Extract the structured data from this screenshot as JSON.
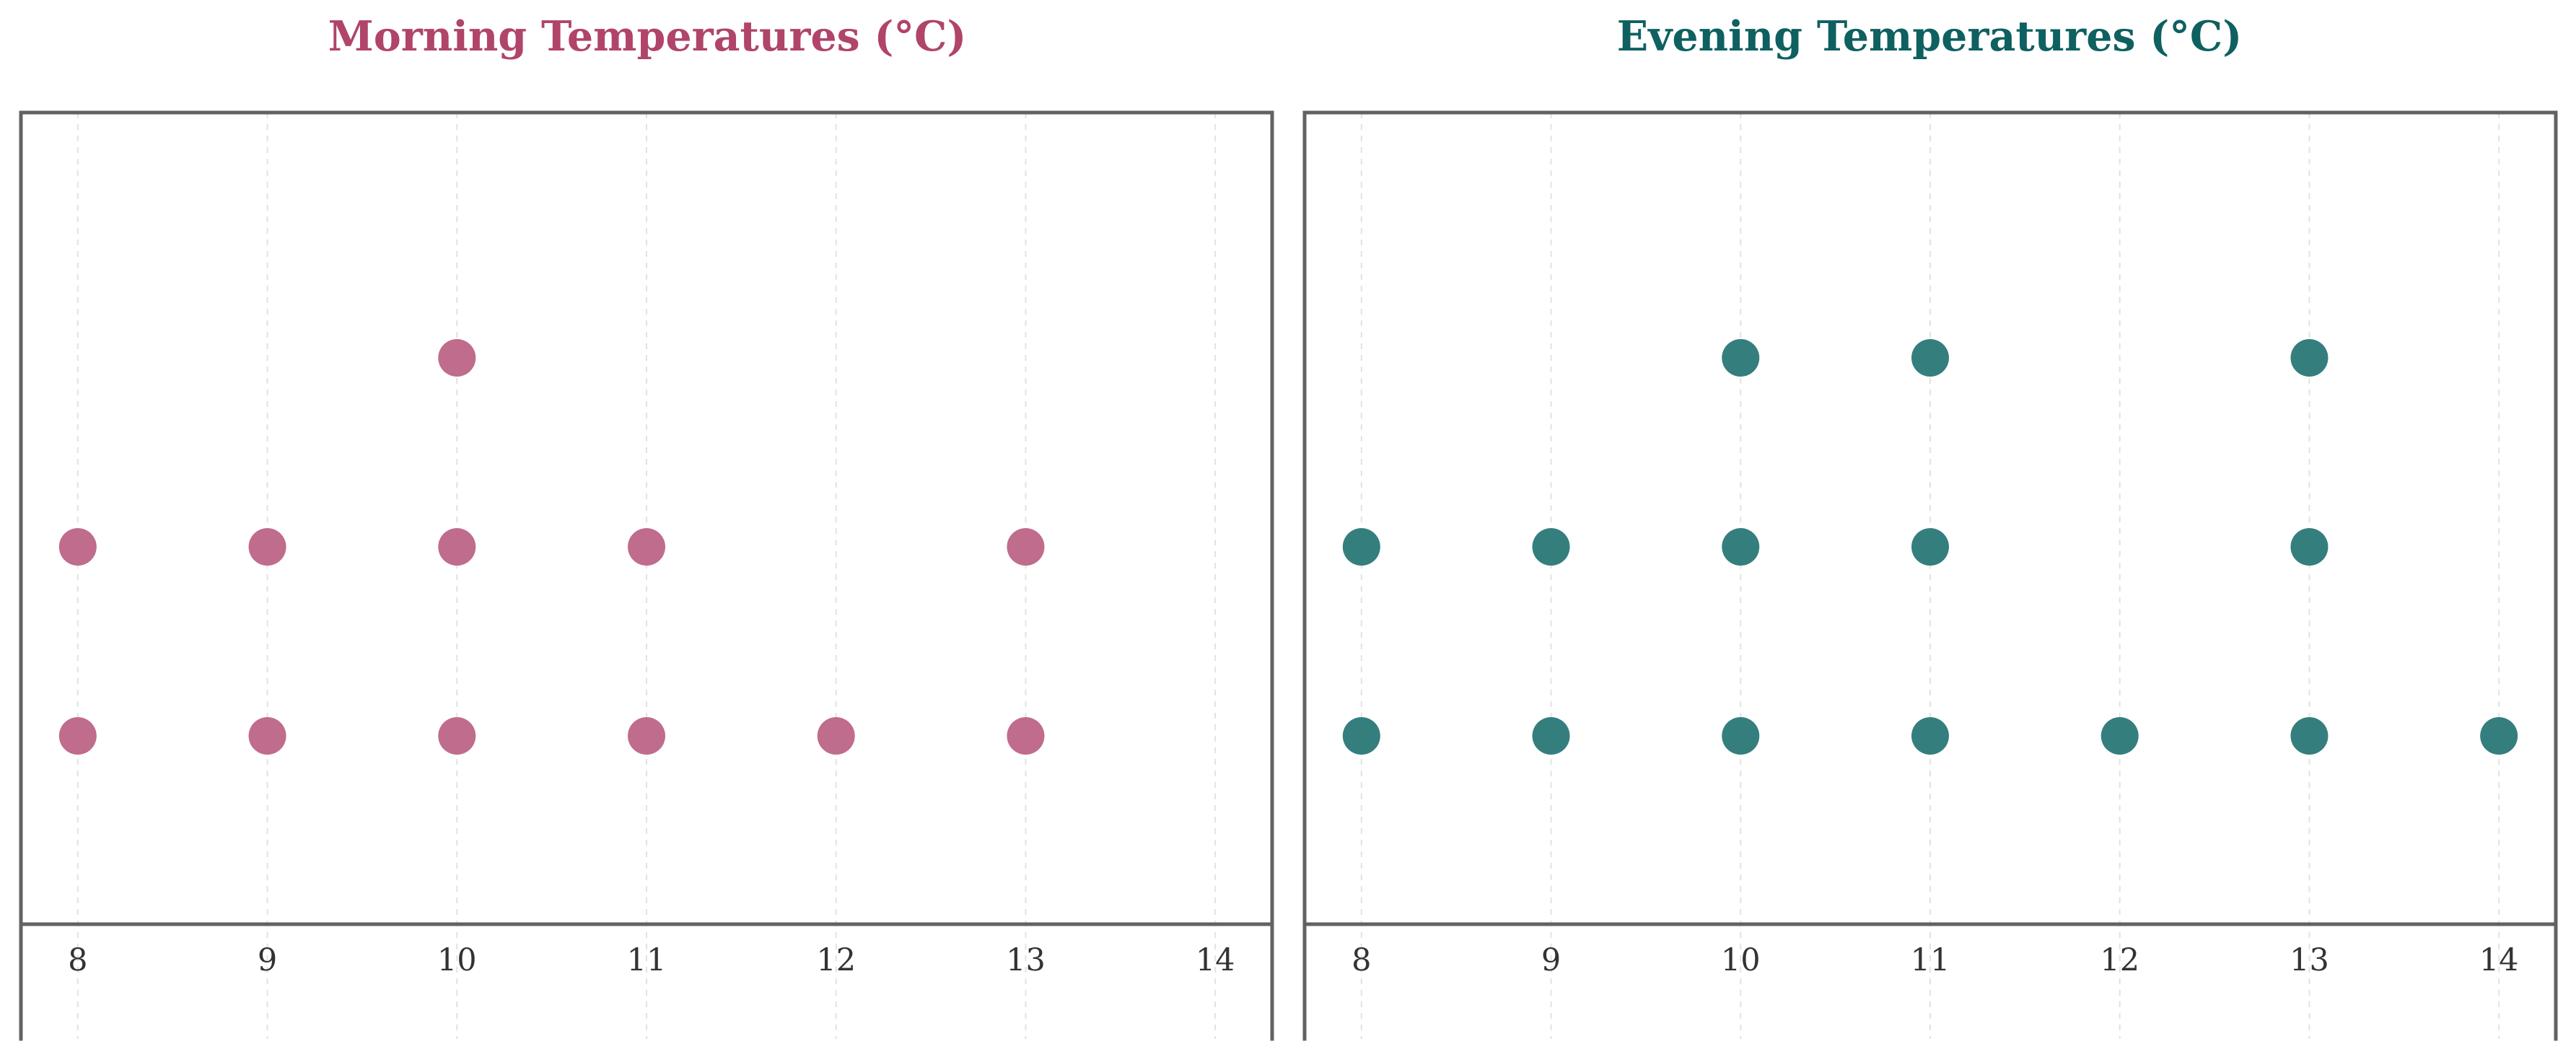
{
  "chart_data": [
    {
      "type": "scatter",
      "subtype": "dot-plot",
      "title": "Morning Temperatures (°C)",
      "title_color": "#b0446b",
      "marker_color": "#c06c8c",
      "x_ticks": [
        8,
        9,
        10,
        11,
        12,
        13,
        14
      ],
      "xlim": [
        7.7,
        14.3
      ],
      "grid": "vertical dashed",
      "counts": [
        {
          "x": 8,
          "count": 2
        },
        {
          "x": 9,
          "count": 2
        },
        {
          "x": 10,
          "count": 3
        },
        {
          "x": 11,
          "count": 2
        },
        {
          "x": 12,
          "count": 1
        },
        {
          "x": 13,
          "count": 2
        },
        {
          "x": 14,
          "count": 0
        }
      ]
    },
    {
      "type": "scatter",
      "subtype": "dot-plot",
      "title": "Evening Temperatures (°C)",
      "title_color": "#0f6060",
      "marker_color": "#357e7e",
      "x_ticks": [
        8,
        9,
        10,
        11,
        12,
        13,
        14
      ],
      "xlim": [
        7.7,
        14.3
      ],
      "grid": "vertical dashed",
      "counts": [
        {
          "x": 8,
          "count": 2
        },
        {
          "x": 9,
          "count": 2
        },
        {
          "x": 10,
          "count": 3
        },
        {
          "x": 11,
          "count": 3
        },
        {
          "x": 12,
          "count": 1
        },
        {
          "x": 13,
          "count": 3
        },
        {
          "x": 14,
          "count": 1
        }
      ]
    }
  ]
}
